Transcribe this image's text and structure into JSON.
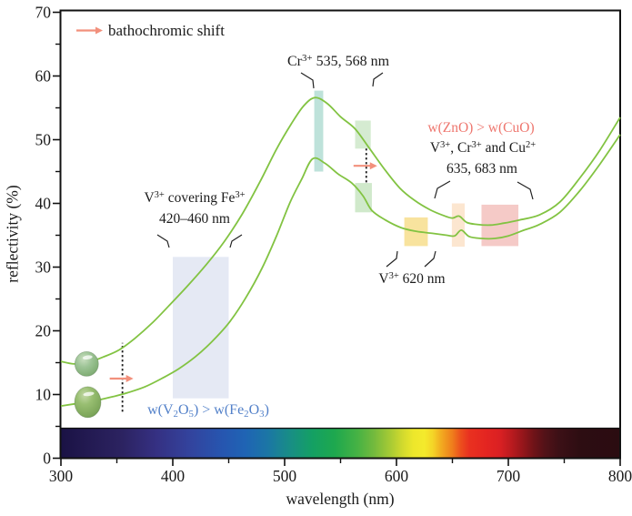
{
  "colors": {
    "text": "#1b1b1b",
    "curve_green": "#82c342",
    "salmon_arrow": "#f2907c",
    "salmon_text": "#ee766e",
    "blue_text": "#5381c9",
    "frame": "#111111"
  },
  "legend": {
    "bathochromic_label": "bathochromic shift"
  },
  "axes": {
    "x": {
      "title": "wavelength (nm)",
      "min": 300,
      "max": 800,
      "major_ticks": [
        300,
        400,
        500,
        600,
        700,
        800
      ],
      "minor_ticks": [
        350,
        450,
        550,
        650,
        750
      ]
    },
    "y": {
      "title": "reflectivity (%)",
      "min": 0,
      "max": 70,
      "major_ticks": [
        0,
        10,
        20,
        30,
        40,
        50,
        60,
        70
      ],
      "minor_ticks": [
        5,
        15,
        25,
        35,
        45,
        55,
        65
      ]
    }
  },
  "chart_data": {
    "type": "line",
    "title": "",
    "xlabel": "wavelength (nm)",
    "ylabel": "reflectivity (%)",
    "xlim": [
      300,
      800
    ],
    "ylim": [
      0,
      70
    ],
    "grid": false,
    "series": [
      {
        "name": "upper-reflectivity-curve",
        "points": [
          [
            300,
            15.2
          ],
          [
            312,
            14.8
          ],
          [
            324,
            15.0
          ],
          [
            338,
            15.9
          ],
          [
            352,
            17.0
          ],
          [
            366,
            18.8
          ],
          [
            382,
            21.3
          ],
          [
            398,
            24.2
          ],
          [
            414,
            27.2
          ],
          [
            430,
            30.4
          ],
          [
            446,
            34.0
          ],
          [
            462,
            38.3
          ],
          [
            478,
            43.4
          ],
          [
            493,
            48.6
          ],
          [
            506,
            52.5
          ],
          [
            517,
            55.3
          ],
          [
            527,
            56.6
          ],
          [
            538,
            55.7
          ],
          [
            550,
            53.6
          ],
          [
            563,
            51.7
          ],
          [
            576,
            48.6
          ],
          [
            590,
            45.2
          ],
          [
            603,
            42.4
          ],
          [
            616,
            40.5
          ],
          [
            630,
            39.0
          ],
          [
            642,
            38.1
          ],
          [
            650,
            37.7
          ],
          [
            656,
            38.0
          ],
          [
            663,
            37.0
          ],
          [
            672,
            36.7
          ],
          [
            684,
            36.6
          ],
          [
            696,
            36.9
          ],
          [
            710,
            37.4
          ],
          [
            728,
            38.2
          ],
          [
            746,
            40.2
          ],
          [
            764,
            44.0
          ],
          [
            782,
            48.4
          ],
          [
            800,
            53.5
          ]
        ]
      },
      {
        "name": "lower-reflectivity-curve",
        "points": [
          [
            300,
            8.2
          ],
          [
            315,
            8.6
          ],
          [
            330,
            9.0
          ],
          [
            345,
            9.6
          ],
          [
            360,
            10.3
          ],
          [
            375,
            11.2
          ],
          [
            390,
            12.5
          ],
          [
            405,
            14.0
          ],
          [
            420,
            15.9
          ],
          [
            435,
            18.3
          ],
          [
            450,
            21.2
          ],
          [
            465,
            25.1
          ],
          [
            480,
            29.9
          ],
          [
            493,
            35.0
          ],
          [
            505,
            40.2
          ],
          [
            515,
            43.7
          ],
          [
            525,
            47.0
          ],
          [
            536,
            46.3
          ],
          [
            548,
            44.6
          ],
          [
            560,
            43.2
          ],
          [
            570,
            41.2
          ],
          [
            578,
            38.9
          ],
          [
            590,
            37.4
          ],
          [
            604,
            36.2
          ],
          [
            618,
            35.6
          ],
          [
            632,
            35.3
          ],
          [
            645,
            35.0
          ],
          [
            652,
            34.9
          ],
          [
            658,
            35.8
          ],
          [
            665,
            34.8
          ],
          [
            676,
            34.5
          ],
          [
            688,
            34.5
          ],
          [
            700,
            34.9
          ],
          [
            714,
            35.8
          ],
          [
            728,
            36.7
          ],
          [
            746,
            38.6
          ],
          [
            764,
            42.0
          ],
          [
            782,
            46.2
          ],
          [
            800,
            50.8
          ]
        ]
      }
    ],
    "highlight_boxes": [
      {
        "name": "v-covering-fe-band",
        "x1": 400,
        "x2": 450,
        "y1": 9.4,
        "y2": 31.6,
        "color": "#e5e9f4"
      },
      {
        "name": "cr-535-band",
        "x1": 526.5,
        "x2": 534.5,
        "y1": 45.0,
        "y2": 57.7,
        "color": "#bee2da"
      },
      {
        "name": "cr-568-band-upper",
        "x1": 563,
        "x2": 577,
        "y1": 48.6,
        "y2": 53.0,
        "color": "#d5ebd1"
      },
      {
        "name": "cr-568-band-lower",
        "x1": 563,
        "x2": 578,
        "y1": 38.6,
        "y2": 43.2,
        "color": "#d0e9cb"
      },
      {
        "name": "v-620-band",
        "x1": 607,
        "x2": 628,
        "y1": 33.3,
        "y2": 37.8,
        "color": "#f8e39e"
      },
      {
        "name": "cu-655-band",
        "x1": 649.5,
        "x2": 661,
        "y1": 33.2,
        "y2": 40.0,
        "color": "#fce6d0"
      },
      {
        "name": "cu-683-band",
        "x1": 676,
        "x2": 709,
        "y1": 33.3,
        "y2": 39.8,
        "color": "#f5cac7"
      }
    ],
    "bathochromic_shift_markers": [
      {
        "x_nm": 355,
        "arrow_y": 12.5,
        "line_y1": 7.3,
        "line_y2": 18.1
      },
      {
        "x_nm": 573,
        "arrow_y": 45.9,
        "line_y1": 43.3,
        "line_y2": 48.6
      }
    ],
    "sample_beads": [
      {
        "name": "gem-bead-upper",
        "x_nm": 323,
        "y_val": 14.8,
        "rx": 13,
        "ry": 13.5
      },
      {
        "name": "gem-bead-lower",
        "x_nm": 324,
        "y_val": 8.8,
        "rx": 14.5,
        "ry": 17
      }
    ],
    "spectrum_bar_stops": [
      [
        0,
        "#1a1244"
      ],
      [
        0.05,
        "#231a52"
      ],
      [
        0.11,
        "#2c2361"
      ],
      [
        0.17,
        "#353082"
      ],
      [
        0.23,
        "#33439d"
      ],
      [
        0.29,
        "#2656b0"
      ],
      [
        0.33,
        "#1f64b4"
      ],
      [
        0.37,
        "#1b76a5"
      ],
      [
        0.41,
        "#188e85"
      ],
      [
        0.45,
        "#14a063"
      ],
      [
        0.49,
        "#1ea84e"
      ],
      [
        0.53,
        "#46b244"
      ],
      [
        0.56,
        "#74ba3d"
      ],
      [
        0.59,
        "#a9cb34"
      ],
      [
        0.61,
        "#d0d92e"
      ],
      [
        0.63,
        "#ede72b"
      ],
      [
        0.65,
        "#f4ea2c"
      ],
      [
        0.665,
        "#f4d527"
      ],
      [
        0.68,
        "#f2ab20"
      ],
      [
        0.7,
        "#ef7d1c"
      ],
      [
        0.715,
        "#ec4f1d"
      ],
      [
        0.73,
        "#e93120"
      ],
      [
        0.76,
        "#e42521"
      ],
      [
        0.785,
        "#da2023"
      ],
      [
        0.805,
        "#bb1b1f"
      ],
      [
        0.825,
        "#97161b"
      ],
      [
        0.845,
        "#701318"
      ],
      [
        0.865,
        "#531218"
      ],
      [
        0.89,
        "#3c1016"
      ],
      [
        0.93,
        "#2d0d12"
      ],
      [
        1,
        "#2b0c11"
      ]
    ]
  },
  "annotations": {
    "cr535": [
      {
        "t": "Cr"
      },
      {
        "t": "3+",
        "s": "sup"
      },
      {
        "t": " 535, 568 nm"
      }
    ],
    "zno": [
      {
        "t": "w(ZnO) > w(CuO)"
      }
    ],
    "ions": [
      {
        "t": "V"
      },
      {
        "t": "3+",
        "s": "sup"
      },
      {
        "t": ", Cr"
      },
      {
        "t": "3+",
        "s": "sup"
      },
      {
        "t": " and Cu"
      },
      {
        "t": "2+",
        "s": "sup"
      }
    ],
    "nm635": [
      {
        "t": "635, 683 nm"
      }
    ],
    "fe_cover_line1": [
      {
        "t": "V"
      },
      {
        "t": "3+",
        "s": "sup"
      },
      {
        "t": " covering Fe"
      },
      {
        "t": "3+",
        "s": "sup"
      }
    ],
    "fe_cover_line2": [
      {
        "t": "420–460 nm"
      }
    ],
    "v620": [
      {
        "t": "V"
      },
      {
        "t": "3+",
        "s": "sup"
      },
      {
        "t": " 620 nm"
      }
    ],
    "v2o5": [
      {
        "t": "w(V"
      },
      {
        "t": "2",
        "s": "sub"
      },
      {
        "t": "O"
      },
      {
        "t": "5",
        "s": "sub"
      },
      {
        "t": ") > w(Fe"
      },
      {
        "t": "2",
        "s": "sub"
      },
      {
        "t": "O"
      },
      {
        "t": "3",
        "s": "sub"
      },
      {
        "t": ")"
      }
    ]
  }
}
